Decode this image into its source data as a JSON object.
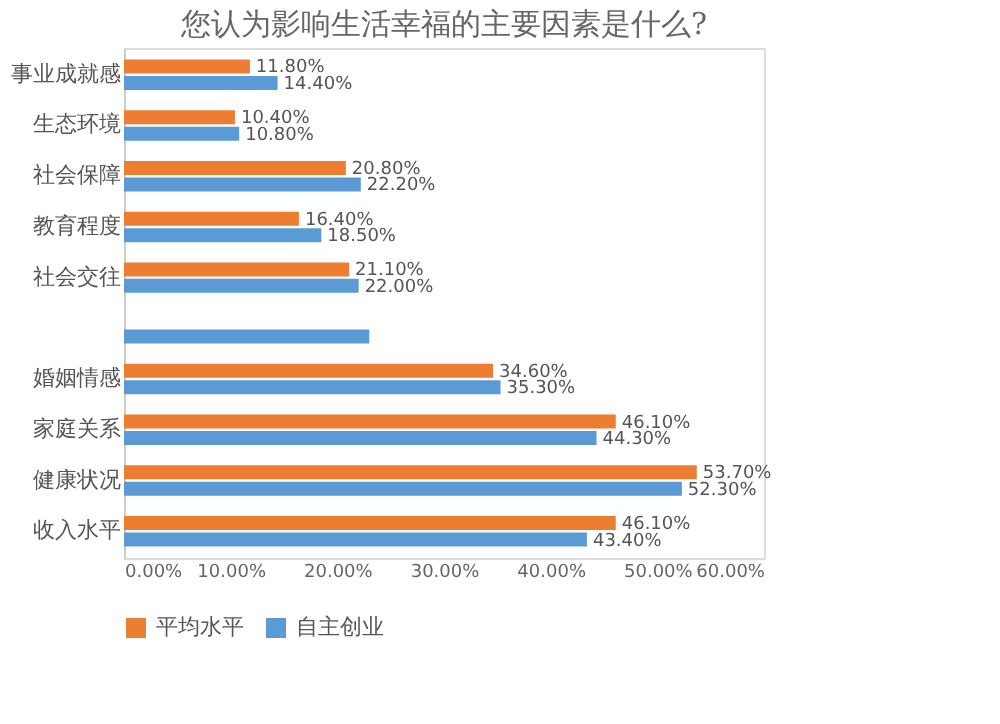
{
  "chart_data": {
    "type": "bar",
    "orientation": "horizontal",
    "title": "您认为影响生活幸福的主要因素是什么?",
    "categories": [
      "事业成就感",
      "生态环境",
      "社会保障",
      "教育程度",
      "社会交往",
      null,
      "婚姻情感",
      "家庭关系",
      "健康状况",
      "收入水平"
    ],
    "series": [
      {
        "name": "平均水平",
        "color": "#ed7d31",
        "values": [
          11.8,
          10.4,
          20.8,
          16.4,
          21.1,
          null,
          34.6,
          46.1,
          53.7,
          46.1
        ],
        "value_labels": [
          "11.80%",
          "10.40%",
          "20.80%",
          "16.40%",
          "21.10%",
          null,
          "34.60%",
          "46.10%",
          "53.70%",
          "46.10%"
        ]
      },
      {
        "name": "自主创业",
        "color": "#5b9bd5",
        "values": [
          14.4,
          10.8,
          22.2,
          18.5,
          22.0,
          23,
          35.3,
          44.3,
          52.3,
          43.4
        ],
        "value_labels": [
          "14.40%",
          "10.80%",
          "22.20%",
          "18.50%",
          "22.00%",
          null,
          "35.30%",
          "44.30%",
          "52.30%",
          "43.40%"
        ]
      }
    ],
    "xlim": [
      0,
      60
    ],
    "xticks": [
      {
        "value": 0,
        "label": "0.00%"
      },
      {
        "value": 10,
        "label": "10.00%"
      },
      {
        "value": 20,
        "label": "20.00%"
      },
      {
        "value": 30,
        "label": "30.00%"
      },
      {
        "value": 40,
        "label": "40.00%"
      },
      {
        "value": 50,
        "label": "50.00%"
      },
      {
        "value": 60,
        "label": "60.00%"
      }
    ],
    "grid": false,
    "legend": "bottom"
  }
}
